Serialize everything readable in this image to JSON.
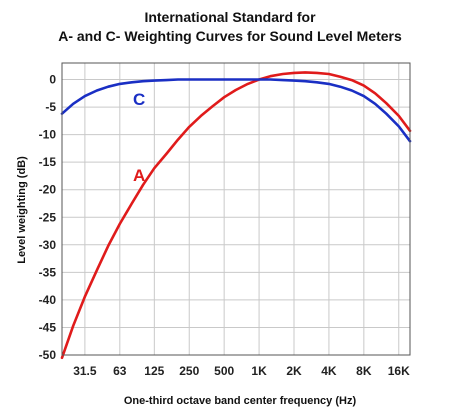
{
  "chart_data": {
    "type": "line",
    "title": "International Standard for",
    "subtitle": "A- and C- Weighting Curves for Sound Level Meters",
    "xlabel": "One-third octave band center frequency (Hz)",
    "ylabel": "Level weighting (dB)",
    "x_scale": "log",
    "xlim": [
      20,
      20000
    ],
    "ylim": [
      -50,
      3
    ],
    "grid": true,
    "legend": "none (series labeled on plot)",
    "xticks": [
      {
        "value": 31.5,
        "label": "31.5"
      },
      {
        "value": 63,
        "label": "63"
      },
      {
        "value": 125,
        "label": "125"
      },
      {
        "value": 250,
        "label": "250"
      },
      {
        "value": 500,
        "label": "500"
      },
      {
        "value": 1000,
        "label": "1K"
      },
      {
        "value": 2000,
        "label": "2K"
      },
      {
        "value": 4000,
        "label": "4K"
      },
      {
        "value": 8000,
        "label": "8K"
      },
      {
        "value": 16000,
        "label": "16K"
      }
    ],
    "yticks": [
      {
        "value": 0,
        "label": "0"
      },
      {
        "value": -5,
        "label": "-5"
      },
      {
        "value": -10,
        "label": "-10"
      },
      {
        "value": -15,
        "label": "-15"
      },
      {
        "value": -20,
        "label": "-20"
      },
      {
        "value": -25,
        "label": "-25"
      },
      {
        "value": -30,
        "label": "-30"
      },
      {
        "value": -35,
        "label": "-35"
      },
      {
        "value": -40,
        "label": "-40"
      },
      {
        "value": -45,
        "label": "-45"
      },
      {
        "value": -50,
        "label": "-50"
      }
    ],
    "series": [
      {
        "name": "A",
        "color": "#e01b1b",
        "x": [
          20,
          25,
          31.5,
          40,
          50,
          63,
          80,
          100,
          125,
          160,
          200,
          250,
          315,
          400,
          500,
          630,
          800,
          1000,
          1250,
          1600,
          2000,
          2500,
          3150,
          4000,
          5000,
          6300,
          8000,
          10000,
          12500,
          16000,
          20000
        ],
        "values": [
          -50.5,
          -44.7,
          -39.4,
          -34.6,
          -30.2,
          -26.2,
          -22.5,
          -19.1,
          -16.1,
          -13.4,
          -10.9,
          -8.6,
          -6.6,
          -4.8,
          -3.2,
          -1.9,
          -0.8,
          0.0,
          0.6,
          1.0,
          1.2,
          1.3,
          1.2,
          1.0,
          0.5,
          -0.1,
          -1.1,
          -2.5,
          -4.3,
          -6.6,
          -9.3
        ]
      },
      {
        "name": "C",
        "color": "#1a2fc4",
        "x": [
          20,
          25,
          31.5,
          40,
          50,
          63,
          80,
          100,
          125,
          160,
          200,
          250,
          315,
          400,
          500,
          630,
          800,
          1000,
          1250,
          1600,
          2000,
          2500,
          3150,
          4000,
          5000,
          6300,
          8000,
          10000,
          12500,
          16000,
          20000
        ],
        "values": [
          -6.2,
          -4.4,
          -3.0,
          -2.0,
          -1.3,
          -0.8,
          -0.5,
          -0.3,
          -0.2,
          -0.1,
          0.0,
          0.0,
          0.0,
          0.0,
          0.0,
          0.0,
          0.0,
          0.0,
          0.0,
          -0.1,
          -0.2,
          -0.3,
          -0.5,
          -0.8,
          -1.3,
          -2.0,
          -3.0,
          -4.4,
          -6.2,
          -8.5,
          -11.2
        ]
      }
    ]
  }
}
